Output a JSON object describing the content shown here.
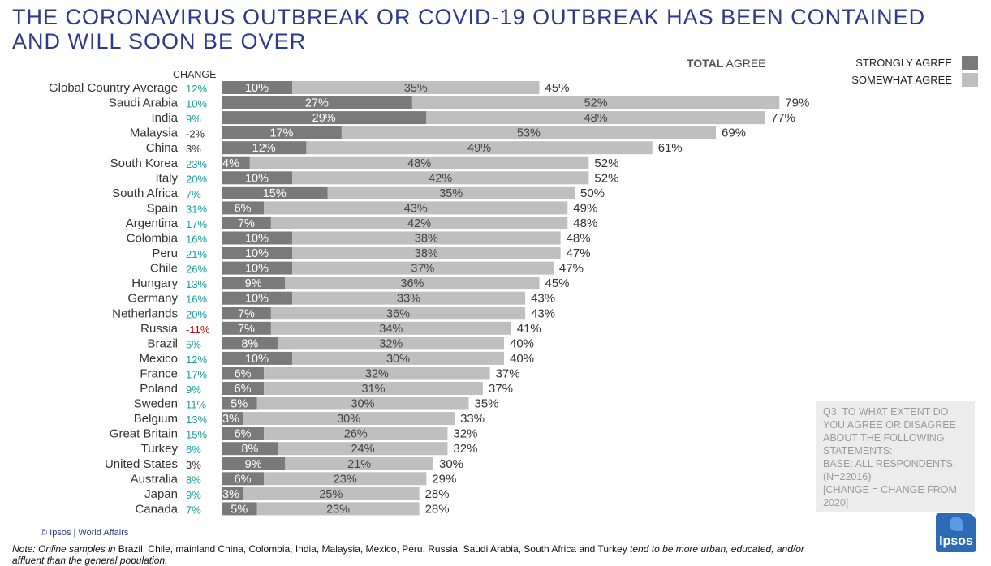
{
  "title": "THE CORONAVIRUS OUTBREAK OR COVID-19 OUTBREAK HAS BEEN CONTAINED AND WILL SOON BE OVER",
  "total_label_bold": "TOTAL",
  "total_label_rest": " AGREE",
  "change_header": "CHANGE",
  "legend": [
    {
      "label": "STRONGLY AGREE",
      "color": "#7a7a7a"
    },
    {
      "label": "SOMEWHAT AGREE",
      "color": "#bfbfbf"
    }
  ],
  "colors": {
    "strong": "#7a7a7a",
    "somewhat": "#bfbfbf",
    "change_pos": "#1a9e9e",
    "change_neg": "#c00000",
    "change_neutral": "#333333"
  },
  "chart_data": {
    "type": "bar",
    "orientation": "horizontal-stacked",
    "title": "THE CORONAVIRUS OUTBREAK OR COVID-19 OUTBREAK HAS BEEN CONTAINED AND WILL SOON BE OVER",
    "xlim": [
      0,
      100
    ],
    "categories": [
      "Global Country Average",
      "Saudi Arabia",
      "India",
      "Malaysia",
      "China",
      "South Korea",
      "Italy",
      "South Africa",
      "Spain",
      "Argentina",
      "Colombia",
      "Peru",
      "Chile",
      "Hungary",
      "Germany",
      "Netherlands",
      "Russia",
      "Brazil",
      "Mexico",
      "France",
      "Poland",
      "Sweden",
      "Belgium",
      "Great Britain",
      "Turkey",
      "United States",
      "Australia",
      "Japan",
      "Canada"
    ],
    "series": [
      {
        "name": "STRONGLY AGREE",
        "values": [
          10,
          27,
          29,
          17,
          12,
          4,
          10,
          15,
          6,
          7,
          10,
          10,
          10,
          9,
          10,
          7,
          7,
          8,
          10,
          6,
          6,
          5,
          3,
          6,
          8,
          9,
          6,
          3,
          5
        ]
      },
      {
        "name": "SOMEWHAT AGREE",
        "values": [
          35,
          52,
          48,
          53,
          49,
          48,
          42,
          35,
          43,
          42,
          38,
          38,
          37,
          36,
          33,
          36,
          34,
          32,
          30,
          32,
          31,
          30,
          30,
          26,
          24,
          21,
          23,
          25,
          23
        ]
      }
    ],
    "total": [
      45,
      79,
      77,
      69,
      61,
      52,
      52,
      50,
      49,
      48,
      48,
      47,
      47,
      45,
      43,
      43,
      41,
      40,
      40,
      37,
      37,
      35,
      33,
      32,
      32,
      30,
      29,
      28,
      28
    ],
    "change": [
      "12%",
      "10%",
      "9%",
      "-2%",
      "3%",
      "23%",
      "20%",
      "7%",
      "31%",
      "17%",
      "16%",
      "21%",
      "26%",
      "13%",
      "16%",
      "20%",
      "-11%",
      "5%",
      "12%",
      "17%",
      "9%",
      "11%",
      "13%",
      "15%",
      "6%",
      "3%",
      "8%",
      "9%",
      "7%"
    ],
    "change_tone": [
      "pos",
      "pos",
      "pos",
      "neutral",
      "neutral",
      "pos",
      "pos",
      "pos",
      "pos",
      "pos",
      "pos",
      "pos",
      "pos",
      "pos",
      "pos",
      "pos",
      "neg",
      "pos",
      "pos",
      "pos",
      "pos",
      "pos",
      "pos",
      "pos",
      "pos",
      "neutral",
      "pos",
      "pos",
      "pos"
    ]
  },
  "question_box": [
    "Q3. TO WHAT EXTENT DO",
    "YOU AGREE OR DISAGREE",
    "ABOUT THE FOLLOWING",
    "STATEMENTS:",
    "BASE: ALL RESPONDENTS,",
    "(N=22016)",
    "[CHANGE = CHANGE FROM",
    "2020]"
  ],
  "footer_credit": "© Ipsos | World Affairs",
  "note": {
    "prefix": "Note: Online samples in ",
    "countries": "Brazil, Chile, mainland China, Colombia, India, Malaysia, Mexico, Peru, Russia, Saudi Arabia, South Africa and Turkey",
    "suffix": " tend to be more urban, educated, and/or affluent than the general population."
  },
  "logo_text": "Ipsos"
}
